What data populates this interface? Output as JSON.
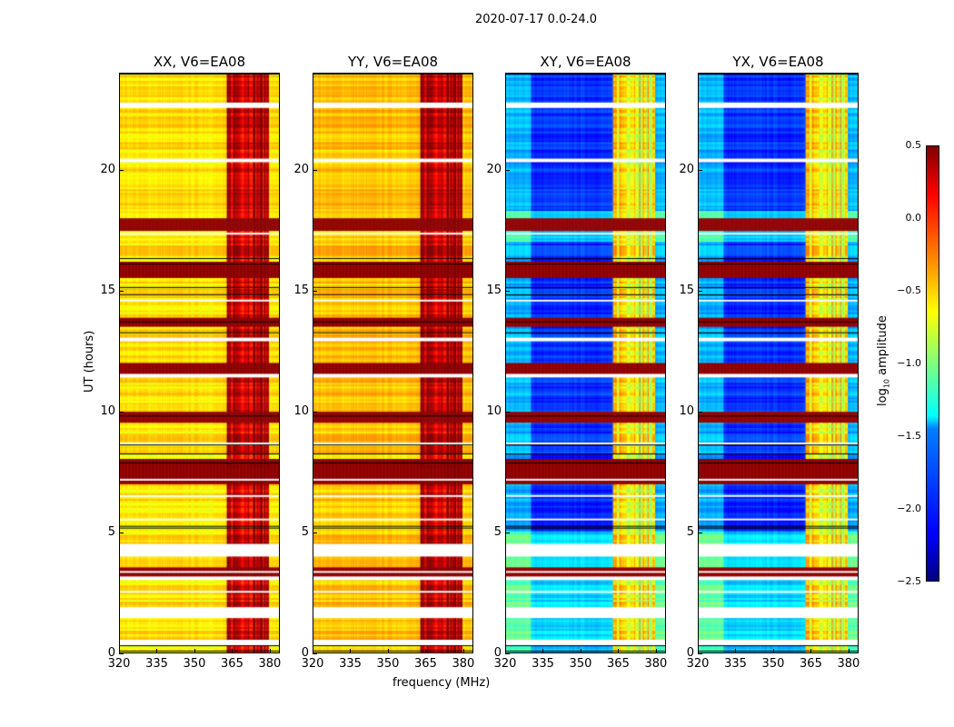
{
  "chart_data": {
    "type": "heatmap",
    "title": "2020-07-17 0.0-24.0",
    "xlabel": "frequency (MHz)",
    "ylabel": "UT (hours)",
    "xlim": [
      320,
      384
    ],
    "ylim": [
      0,
      24
    ],
    "xticks": [
      "320",
      "335",
      "350",
      "365",
      "380"
    ],
    "yticks": [
      "0",
      "5",
      "10",
      "15",
      "20"
    ],
    "colormap": "jet",
    "colorbar": {
      "label": "log10 amplitude",
      "label_main": "log",
      "label_sub": "10",
      "label_rest": " amplitude",
      "range": [
        -2.5,
        0.5
      ],
      "ticks": [
        "0.5",
        "0.0",
        "−0.5",
        "−1.0",
        "−1.5",
        "−2.0",
        "−2.5"
      ]
    },
    "panels": [
      {
        "title": "XX, V6=EA08",
        "base": -0.55,
        "rfi": 0.35
      },
      {
        "title": "YY, V6=EA08",
        "base": -0.45,
        "rfi": 0.4
      },
      {
        "title": "XY, V6=EA08",
        "base": -2.0,
        "rfi": -0.5
      },
      {
        "title": "YX, V6=EA08",
        "base": -2.0,
        "rfi": -0.5
      }
    ],
    "rfi_band_mhz": [
      363,
      380
    ],
    "flagged_gaps_hours": [
      [
        0.3,
        0.5
      ],
      [
        1.4,
        1.9
      ],
      [
        4.0,
        4.5
      ],
      [
        20.3,
        20.5
      ],
      [
        22.6,
        22.8
      ]
    ],
    "high_amplitude_hours": [
      [
        3.0,
        3.5
      ],
      [
        7.0,
        8.0
      ],
      [
        9.5,
        10.0
      ],
      [
        11.5,
        12.0
      ],
      [
        13.5,
        13.9
      ],
      [
        15.5,
        16.2
      ],
      [
        17.5,
        18.0
      ]
    ]
  }
}
